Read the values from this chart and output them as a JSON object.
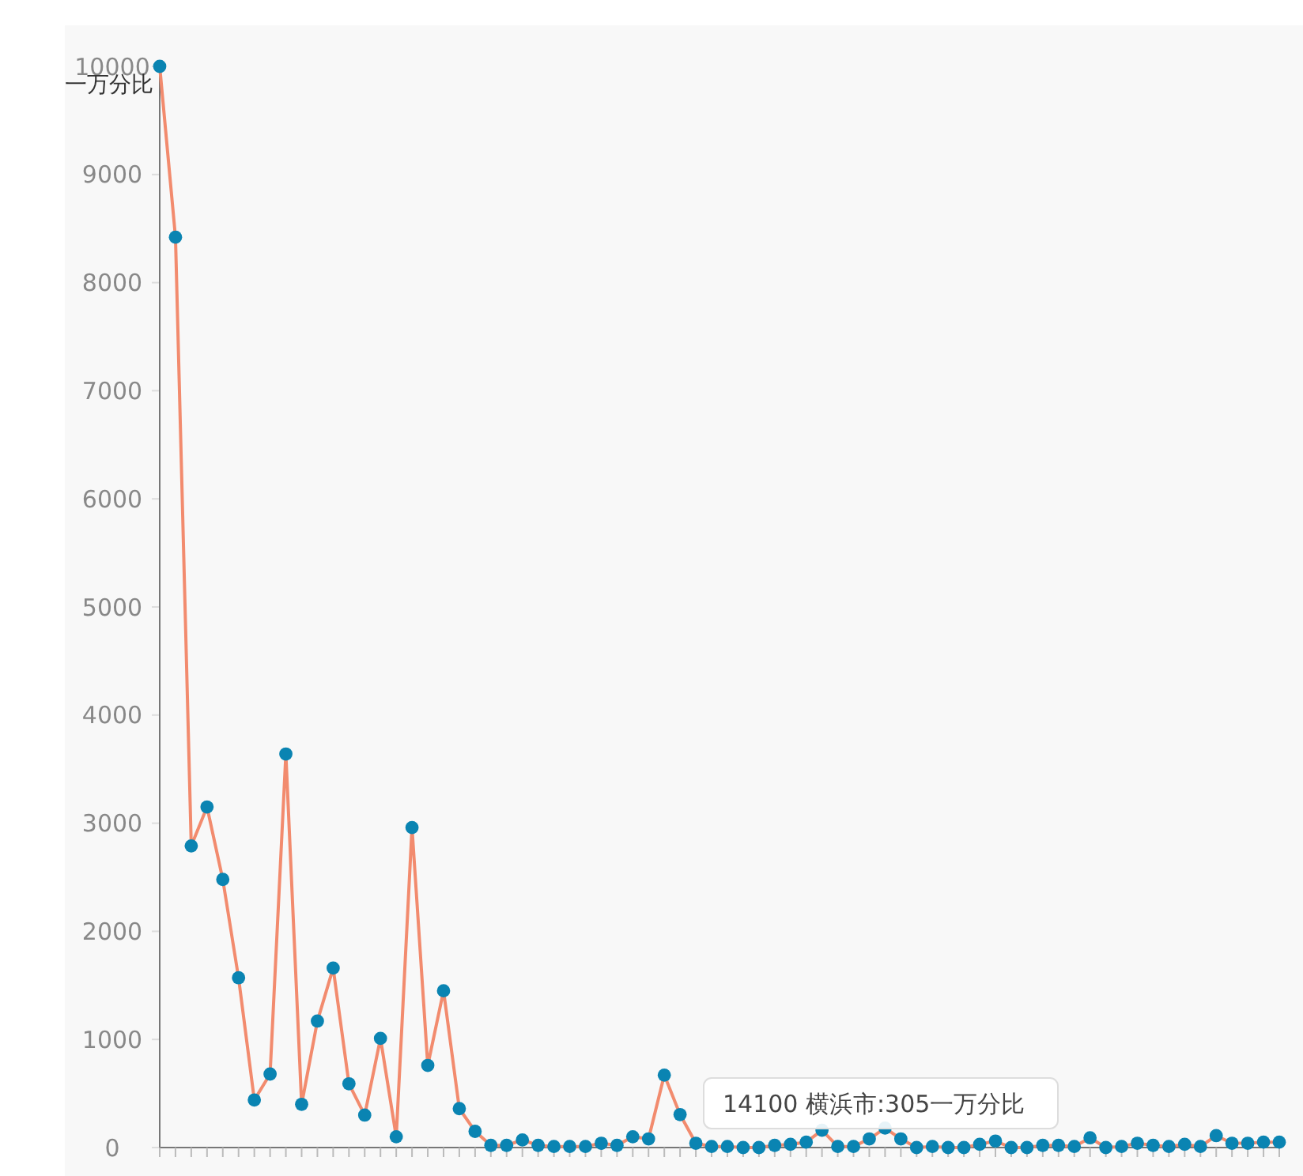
{
  "chart_data": {
    "type": "line",
    "ylabel": "一万分比",
    "categories": [
      null,
      null,
      null,
      null,
      null,
      null,
      null,
      null,
      null,
      null,
      null,
      null,
      null,
      null,
      null,
      null,
      null,
      null,
      null,
      null,
      null,
      null,
      null,
      null,
      null,
      null,
      null,
      null,
      null,
      null,
      null,
      null,
      null,
      null,
      null,
      null,
      null,
      null,
      null,
      null,
      null,
      null,
      null,
      null,
      null,
      null,
      null,
      null,
      null,
      null,
      null,
      null,
      null,
      null,
      null,
      null,
      null,
      null,
      null,
      null,
      null,
      null,
      null,
      null,
      null,
      null,
      null,
      null,
      null,
      null,
      null,
      null
    ],
    "series": [
      {
        "color": "#f28b6e",
        "values": [
          10000,
          8420,
          2790,
          3150,
          2480,
          1570,
          440,
          680,
          3640,
          400,
          1170,
          1660,
          590,
          300,
          1010,
          100,
          2960,
          760,
          1450,
          360,
          150,
          20,
          20,
          70,
          20,
          10,
          10,
          10,
          40,
          20,
          100,
          80,
          670,
          305,
          40,
          10,
          10,
          0,
          0,
          20,
          30,
          50,
          160,
          10,
          10,
          80,
          180,
          80,
          0,
          10,
          0,
          0,
          30,
          60,
          0,
          0,
          20,
          20,
          10,
          90,
          0,
          10,
          40,
          20,
          10,
          30,
          10,
          110,
          40,
          40,
          50,
          50
        ]
      }
    ],
    "ylim": [
      0,
      10000
    ],
    "yticks": [
      0,
      1000,
      2000,
      3000,
      4000,
      5000,
      6000,
      7000,
      8000,
      9000,
      10000
    ],
    "grid": false,
    "marker": "circle",
    "line_style": "solid",
    "annotations": [
      "14100 横浜市:305一万分比"
    ]
  }
}
